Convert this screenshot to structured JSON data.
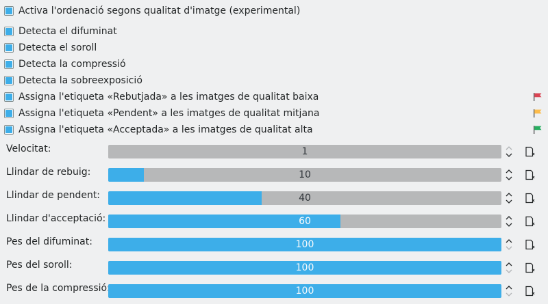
{
  "checkboxes": [
    {
      "label": "Activa l'ordenació segons qualitat d'imatge (experimental)",
      "checked": true
    },
    {
      "label": "Detecta el difuminat",
      "checked": true
    },
    {
      "label": "Detecta el soroll",
      "checked": true
    },
    {
      "label": "Detecta la compressió",
      "checked": true
    },
    {
      "label": "Detecta la sobreexposició",
      "checked": true
    },
    {
      "label": "Assigna l'etiqueta «Rebutjada» a les imatges de qualitat baixa",
      "checked": true,
      "flag": "red-flag-icon",
      "flag_color": "#da4453"
    },
    {
      "label": "Assigna l'etiqueta «Pendent» a les imatges de qualitat mitjana",
      "checked": true,
      "flag": "yellow-flag-icon",
      "flag_color": "#fdbc4b"
    },
    {
      "label": "Assigna l'etiqueta «Acceptada» a les imatges de qualitat alta",
      "checked": true,
      "flag": "green-flag-icon",
      "flag_color": "#27ae60"
    }
  ],
  "sliders": [
    {
      "label": "Velocitat:",
      "value": "1",
      "fill_fraction": 0.0
    },
    {
      "label": "Llindar de rebuig:",
      "value": "10",
      "fill_fraction": 0.09
    },
    {
      "label": "Llindar de pendent:",
      "value": "40",
      "fill_fraction": 0.39
    },
    {
      "label": "Llindar d'acceptació:",
      "value": "60",
      "fill_fraction": 0.59
    },
    {
      "label": "Pes del difuminat:",
      "value": "100",
      "fill_fraction": 1.0
    },
    {
      "label": "Pes del soroll:",
      "value": "100",
      "fill_fraction": 1.0
    },
    {
      "label": "Pes de la compressió:",
      "value": "100",
      "fill_fraction": 1.0
    }
  ],
  "colors": {
    "accent": "#3daee9",
    "track": "#b7b8b9",
    "background": "#eff0f1"
  },
  "icons": {
    "spin": "spin-arrows-icon",
    "reset": "reset-default-icon"
  }
}
